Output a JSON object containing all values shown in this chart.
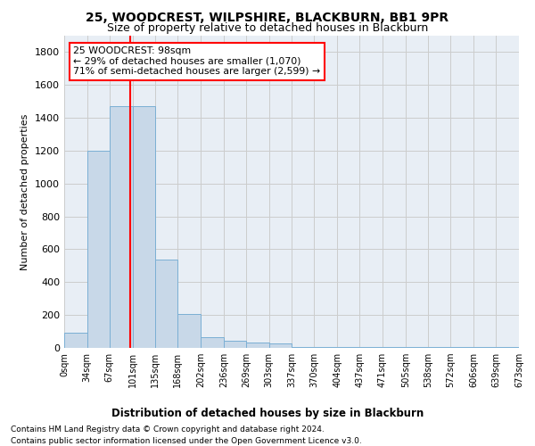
{
  "title1": "25, WOODCREST, WILPSHIRE, BLACKBURN, BB1 9PR",
  "title2": "Size of property relative to detached houses in Blackburn",
  "xlabel": "Distribution of detached houses by size in Blackburn",
  "ylabel": "Number of detached properties",
  "bar_values": [
    90,
    1200,
    1470,
    1470,
    540,
    205,
    65,
    45,
    35,
    28,
    5,
    5,
    5,
    5,
    5,
    5,
    5,
    5,
    5,
    5
  ],
  "bar_color": "#c8d8e8",
  "bar_edgecolor": "#7bafd4",
  "grid_color": "#cccccc",
  "annotation_line1": "25 WOODCREST: 98sqm",
  "annotation_line2": "← 29% of detached houses are smaller (1,070)",
  "annotation_line3": "71% of semi-detached houses are larger (2,599) →",
  "vline_x": 98,
  "footnote1": "Contains HM Land Registry data © Crown copyright and database right 2024.",
  "footnote2": "Contains public sector information licensed under the Open Government Licence v3.0.",
  "ylim": [
    0,
    1900
  ],
  "background_color": "#e8eef5",
  "bin_edges": [
    0,
    34,
    67,
    101,
    135,
    168,
    202,
    236,
    269,
    303,
    337,
    370,
    404,
    437,
    471,
    505,
    538,
    572,
    606,
    639,
    673
  ],
  "tick_labels": [
    "0sqm",
    "34sqm",
    "67sqm",
    "101sqm",
    "135sqm",
    "168sqm",
    "202sqm",
    "236sqm",
    "269sqm",
    "303sqm",
    "337sqm",
    "370sqm",
    "404sqm",
    "437sqm",
    "471sqm",
    "505sqm",
    "538sqm",
    "572sqm",
    "606sqm",
    "639sqm",
    "673sqm"
  ],
  "yticks": [
    0,
    200,
    400,
    600,
    800,
    1000,
    1200,
    1400,
    1600,
    1800
  ]
}
